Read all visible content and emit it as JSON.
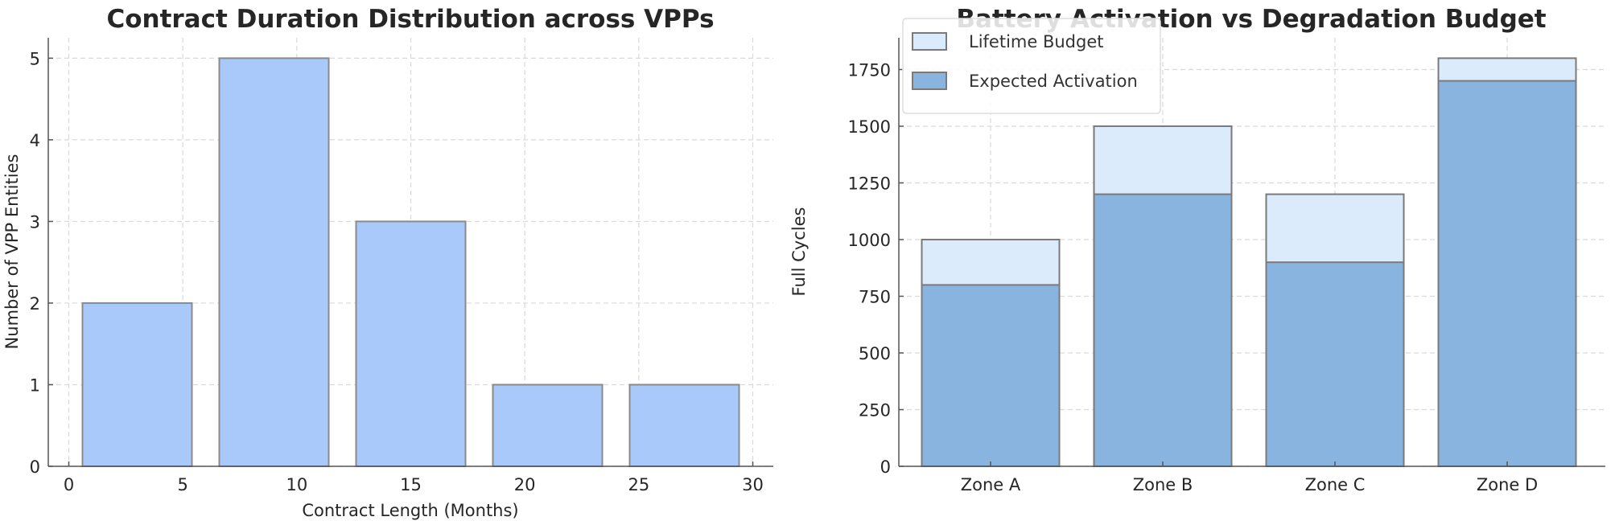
{
  "chart_data": [
    {
      "type": "bar",
      "title": "Contract Duration Distribution across VPPs",
      "xlabel": "Contract Length (Months)",
      "ylabel": "Number of VPP Entities",
      "bin_edges": [
        0,
        6,
        12,
        18,
        24,
        30
      ],
      "values": [
        2,
        5,
        3,
        1,
        1
      ],
      "xlim": [
        -0.9,
        30.9
      ],
      "ylim": [
        0,
        5.25
      ],
      "xticks": [
        0,
        5,
        10,
        15,
        20,
        25,
        30
      ],
      "yticks": [
        0,
        1,
        2,
        3,
        4,
        5
      ],
      "grid": true,
      "colors": {
        "bar": "#a9c9fa",
        "edge": "#8a8a8a"
      }
    },
    {
      "type": "bar",
      "title": "Battery Activation vs Degradation Budget",
      "xlabel": "",
      "ylabel": "Full Cycles",
      "categories": [
        "Zone A",
        "Zone B",
        "Zone C",
        "Zone D"
      ],
      "series": [
        {
          "name": "Lifetime Budget",
          "values": [
            1000,
            1500,
            1200,
            1800
          ],
          "color": "#dbebfb"
        },
        {
          "name": "Expected Activation",
          "values": [
            800,
            1200,
            900,
            1700
          ],
          "color": "#8ab4e0"
        }
      ],
      "ylim": [
        0,
        1890
      ],
      "yticks": [
        0,
        250,
        500,
        750,
        1000,
        1250,
        1500,
        1750
      ],
      "grid": true,
      "legend": "top-left"
    }
  ]
}
